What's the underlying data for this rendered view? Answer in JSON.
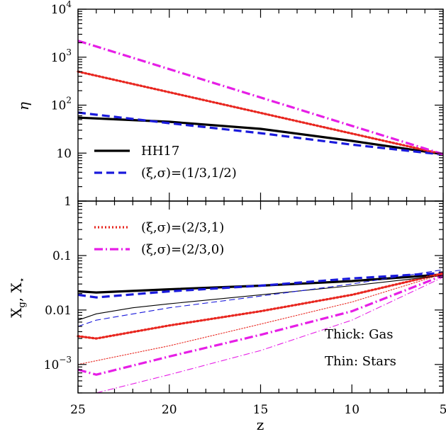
{
  "chart_data": [
    {
      "type": "line",
      "panel": "top",
      "ylabel": "η",
      "yscale": "log",
      "xlim": [
        25,
        5
      ],
      "ylim": [
        1,
        10000
      ],
      "ytick_labels": [
        {
          "value": 1,
          "base": "1",
          "exp": ""
        },
        {
          "value": 10,
          "base": "10",
          "exp": ""
        },
        {
          "value": 100,
          "base": "10",
          "exp": "2"
        },
        {
          "value": 1000,
          "base": "10",
          "exp": "3"
        },
        {
          "value": 10000,
          "base": "10",
          "exp": "4"
        }
      ],
      "legend_position": "lower-left",
      "series": [
        {
          "name": "HH17",
          "style": "solid",
          "color": "#000000",
          "weight": "thick",
          "x": [
            25,
            20,
            15,
            10,
            5
          ],
          "y": [
            55,
            45,
            32,
            18,
            9.5
          ]
        },
        {
          "name": "(ξ,σ)=(1/3,1/2)",
          "style": "dashed",
          "color": "#1a1adc",
          "weight": "thick",
          "x": [
            25,
            20,
            15,
            10,
            5
          ],
          "y": [
            70,
            42,
            26,
            15,
            9.3
          ]
        },
        {
          "name": "(ξ,σ)=(2/3,1)",
          "style": "dotted",
          "color": "#e8261f",
          "weight": "thick",
          "x": [
            25,
            5
          ],
          "y": [
            500,
            9.5
          ]
        },
        {
          "name": "(ξ,σ)=(2/3,0)",
          "style": "dashdot",
          "color": "#e61ee6",
          "weight": "thick",
          "x": [
            25,
            5
          ],
          "y": [
            2200,
            9.5
          ]
        }
      ]
    },
    {
      "type": "line",
      "panel": "bottom",
      "xlabel": "z",
      "ylabel_main": "X",
      "ylabel_sub1": "g",
      "ylabel_mid": ", X",
      "ylabel_sub2": "⋆",
      "yscale": "log",
      "xlim": [
        25,
        5
      ],
      "ylim": [
        0.0003,
        1
      ],
      "xticks": [
        25,
        20,
        15,
        10,
        5
      ],
      "ytick_labels": [
        {
          "value": 0.001,
          "base": "10",
          "exp": "−3"
        },
        {
          "value": 0.01,
          "base": "0.01",
          "exp": ""
        },
        {
          "value": 0.1,
          "base": "0.1",
          "exp": ""
        }
      ],
      "legend_position": "upper-left",
      "annotations": [
        "Thick: Gas",
        "Thin: Stars"
      ],
      "series": [
        {
          "name": "HH17",
          "component": "gas",
          "style": "solid",
          "color": "#000000",
          "weight": "thick",
          "x": [
            25,
            24,
            20,
            15,
            10,
            5
          ],
          "y": [
            0.022,
            0.021,
            0.024,
            0.028,
            0.034,
            0.045
          ]
        },
        {
          "name": "(ξ,σ)=(1/3,1/2)",
          "component": "gas",
          "style": "dashed",
          "color": "#1a1adc",
          "weight": "thick",
          "x": [
            25,
            24,
            20,
            15,
            10,
            5
          ],
          "y": [
            0.019,
            0.017,
            0.022,
            0.028,
            0.038,
            0.048
          ]
        },
        {
          "name": "(ξ,σ)=(2/3,1)",
          "component": "gas",
          "style": "dotted",
          "color": "#e8261f",
          "weight": "thick",
          "x": [
            25,
            24,
            20,
            15,
            10,
            5
          ],
          "y": [
            0.0033,
            0.003,
            0.0052,
            0.0095,
            0.019,
            0.047
          ]
        },
        {
          "name": "(ξ,σ)=(2/3,0)",
          "component": "gas",
          "style": "dashdot",
          "color": "#e61ee6",
          "weight": "thick",
          "x": [
            25,
            24,
            20,
            15,
            10,
            5
          ],
          "y": [
            0.0008,
            0.00065,
            0.0014,
            0.0035,
            0.0095,
            0.043
          ]
        },
        {
          "name": "HH17",
          "component": "stars",
          "style": "solid",
          "color": "#000000",
          "weight": "thin",
          "x": [
            25,
            24,
            22,
            20,
            15,
            10,
            5
          ],
          "y": [
            0.0065,
            0.0085,
            0.011,
            0.013,
            0.019,
            0.028,
            0.043
          ]
        },
        {
          "name": "(ξ,σ)=(1/3,1/2)",
          "component": "stars",
          "style": "dashed",
          "color": "#1a1adc",
          "weight": "thin",
          "x": [
            25,
            24,
            20,
            15,
            10,
            5
          ],
          "y": [
            0.005,
            0.0065,
            0.011,
            0.018,
            0.03,
            0.055
          ]
        },
        {
          "name": "(ξ,σ)=(2/3,1)",
          "component": "stars",
          "style": "dotted",
          "color": "#e8261f",
          "weight": "thin",
          "x": [
            25,
            20,
            15,
            10,
            5
          ],
          "y": [
            0.001,
            0.0022,
            0.0055,
            0.014,
            0.046
          ]
        },
        {
          "name": "(ξ,σ)=(2/3,0)",
          "component": "stars",
          "style": "dashdot",
          "color": "#e61ee6",
          "weight": "thin",
          "x": [
            24,
            20,
            15,
            10,
            5
          ],
          "y": [
            0.0003,
            0.00065,
            0.0018,
            0.0065,
            0.04
          ]
        }
      ]
    }
  ]
}
